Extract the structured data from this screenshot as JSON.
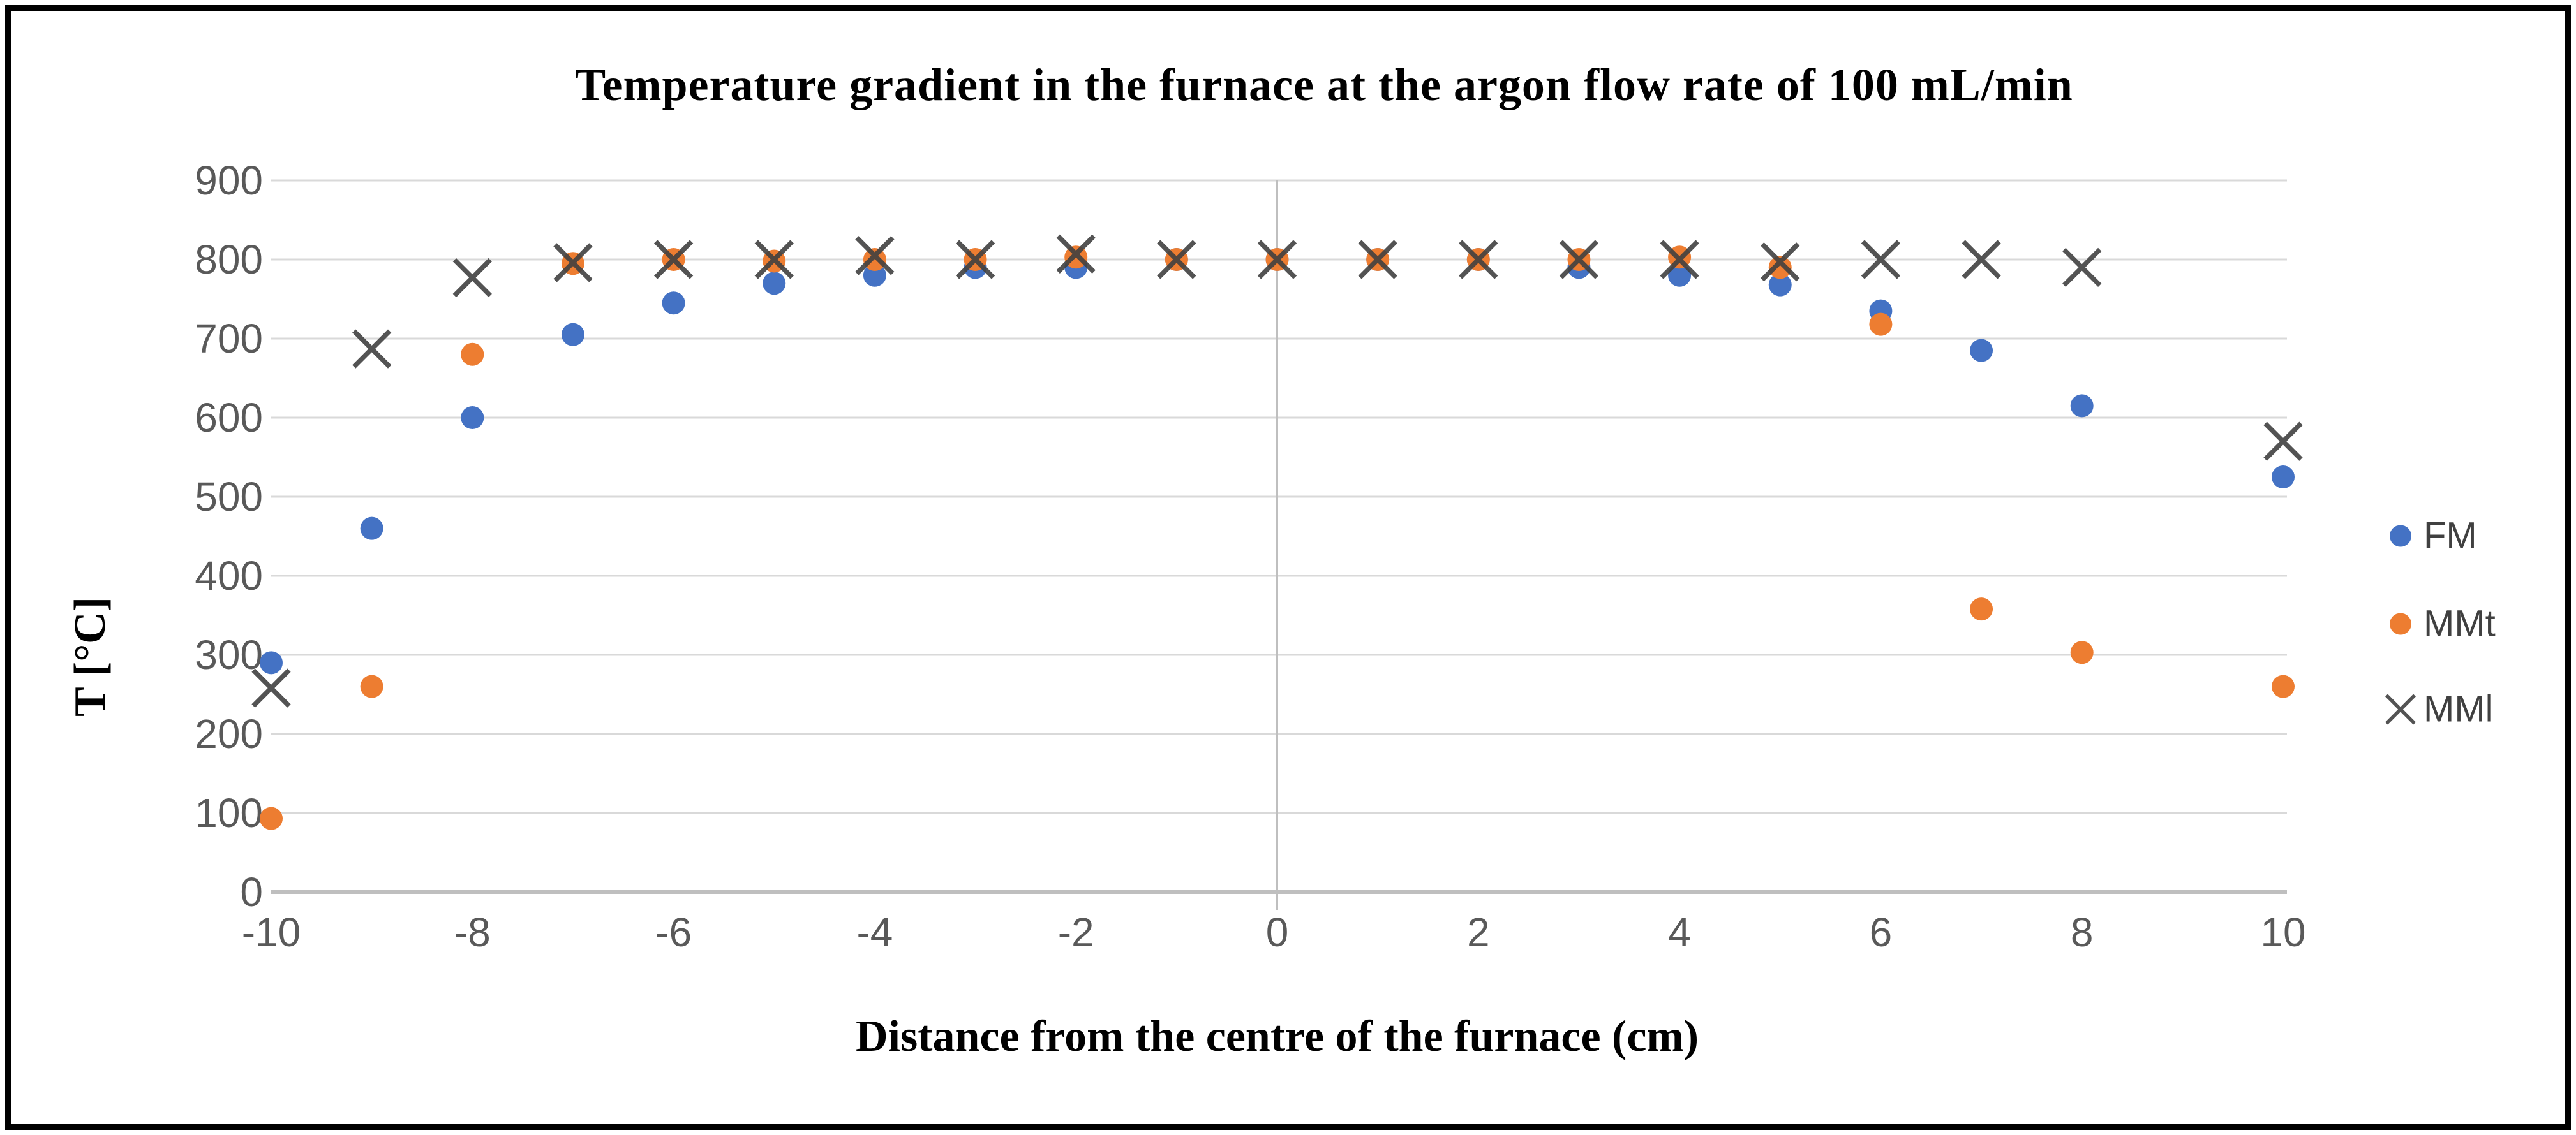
{
  "figure": {
    "title": "Temperature gradient in the furnace at the argon flow rate of 100 mL/min",
    "x_axis_title": "Distance from the centre of the furnace (cm)",
    "y_axis_title": "T [°C]"
  },
  "legend": {
    "items": [
      {
        "label": "FM",
        "marker": "circle",
        "color": "#4472C4"
      },
      {
        "label": "MMt",
        "marker": "circle",
        "color": "#ED7D31"
      },
      {
        "label": "MMl",
        "marker": "x",
        "color": "#404040"
      }
    ]
  },
  "colors": {
    "background": "#FFFFFF",
    "border": "#000000",
    "gridline": "#D9D9D9",
    "axis_line": "#BFBFBF",
    "tick_label": "#595959",
    "title_text": "#000000",
    "legend_text": "#404040",
    "series_fm": "#4472C4",
    "series_mmt": "#ED7D31",
    "series_mml": "#404040"
  },
  "chart_data": {
    "type": "scatter",
    "title": "Temperature gradient in the furnace at the argon flow rate of 100 mL/min",
    "xlabel": "Distance from the centre of the furnace (cm)",
    "ylabel": "T [°C]",
    "xlim": [
      -10,
      10
    ],
    "ylim": [
      0,
      900
    ],
    "x_ticks": [
      -10,
      -8,
      -6,
      -4,
      -2,
      0,
      2,
      4,
      6,
      8,
      10
    ],
    "y_ticks": [
      0,
      100,
      200,
      300,
      400,
      500,
      600,
      700,
      800,
      900
    ],
    "grid": true,
    "legend_position": "right",
    "x": [
      -10,
      -9,
      -8,
      -7,
      -6,
      -5,
      -4,
      -3,
      -2,
      -1,
      0,
      1,
      2,
      3,
      4,
      5,
      6,
      7,
      8,
      10
    ],
    "series": [
      {
        "name": "FM",
        "marker": "circle",
        "color": "#4472C4",
        "values": [
          290,
          460,
          600,
          705,
          745,
          770,
          780,
          790,
          790,
          800,
          800,
          800,
          800,
          790,
          780,
          768,
          735,
          685,
          615,
          525
        ]
      },
      {
        "name": "MMt",
        "marker": "circle",
        "color": "#ED7D31",
        "values": [
          93,
          260,
          680,
          795,
          800,
          798,
          800,
          800,
          803,
          800,
          800,
          800,
          800,
          800,
          803,
          790,
          718,
          358,
          303,
          260
        ]
      },
      {
        "name": "MMl",
        "marker": "x",
        "color": "#404040",
        "values": [
          258,
          687,
          777,
          796,
          800,
          800,
          805,
          800,
          807,
          800,
          800,
          800,
          800,
          800,
          800,
          797,
          800,
          800,
          790,
          570
        ]
      }
    ]
  }
}
